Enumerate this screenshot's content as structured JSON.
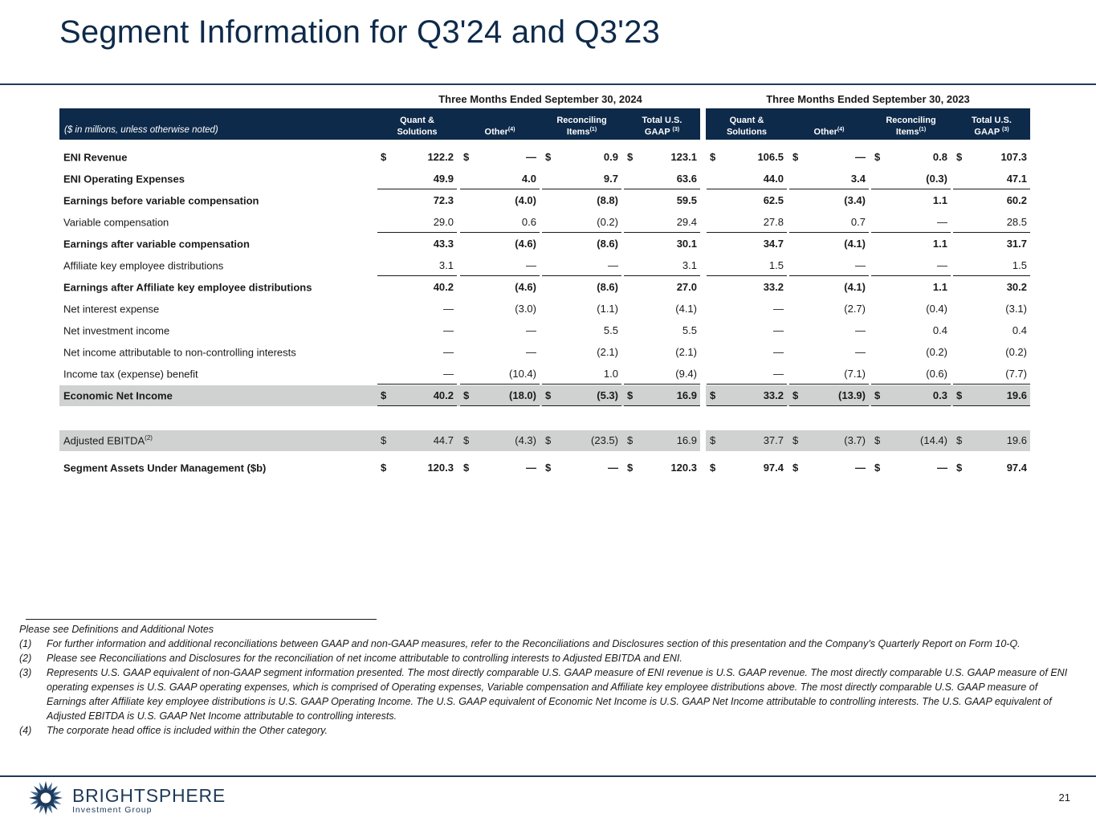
{
  "title": "Segment Information for Q3'24 and Q3'23",
  "periods": {
    "current": "Three Months Ended September 30, 2024",
    "prior": "Three Months Ended September 30, 2023"
  },
  "units_note": "($ in millions, unless otherwise noted)",
  "column_headers": [
    {
      "l1": "Quant &",
      "l2": "Solutions",
      "sup": ""
    },
    {
      "l1": "",
      "l2": "Other",
      "sup": "(4)"
    },
    {
      "l1": "Reconciling",
      "l2": "Items",
      "sup": "(1)"
    },
    {
      "l1": "Total U.S.",
      "l2": "GAAP ",
      "sup": "(3)"
    },
    {
      "l1": "Quant &",
      "l2": "Solutions",
      "sup": ""
    },
    {
      "l1": "",
      "l2": "Other",
      "sup": "(4)"
    },
    {
      "l1": "Reconciling",
      "l2": "Items",
      "sup": "(1)"
    },
    {
      "l1": "Total U.S.",
      "l2": "GAAP ",
      "sup": "(3)"
    }
  ],
  "rows": [
    {
      "label": "ENI Revenue",
      "sup": "",
      "bold": true,
      "dollar": true,
      "values": [
        "122.2",
        "—",
        "0.9",
        "123.1",
        "106.5",
        "—",
        "0.8",
        "107.3"
      ]
    },
    {
      "label": "ENI Operating Expenses",
      "sup": "",
      "bold": true,
      "dollar": false,
      "values": [
        "49.9",
        "4.0",
        "9.7",
        "63.6",
        "44.0",
        "3.4",
        "(0.3)",
        "47.1"
      ]
    },
    {
      "label": "Earnings before variable compensation",
      "sup": "",
      "bold": true,
      "dollar": false,
      "values": [
        "72.3",
        "(4.0)",
        "(8.8)",
        "59.5",
        "62.5",
        "(3.4)",
        "1.1",
        "60.2"
      ]
    },
    {
      "label": "Variable compensation",
      "sup": "",
      "bold": false,
      "dollar": false,
      "values": [
        "29.0",
        "0.6",
        "(0.2)",
        "29.4",
        "27.8",
        "0.7",
        "—",
        "28.5"
      ]
    },
    {
      "label": "Earnings after variable compensation",
      "sup": "",
      "bold": true,
      "dollar": false,
      "values": [
        "43.3",
        "(4.6)",
        "(8.6)",
        "30.1",
        "34.7",
        "(4.1)",
        "1.1",
        "31.7"
      ]
    },
    {
      "label": "Affiliate key employee distributions",
      "sup": "",
      "bold": false,
      "dollar": false,
      "values": [
        "3.1",
        "—",
        "—",
        "3.1",
        "1.5",
        "—",
        "—",
        "1.5"
      ]
    },
    {
      "label": "Earnings after Affiliate key employee distributions",
      "sup": "",
      "bold": true,
      "dollar": false,
      "values": [
        "40.2",
        "(4.6)",
        "(8.6)",
        "27.0",
        "33.2",
        "(4.1)",
        "1.1",
        "30.2"
      ]
    },
    {
      "label": "Net interest expense",
      "sup": "",
      "bold": false,
      "dollar": false,
      "values": [
        "—",
        "(3.0)",
        "(1.1)",
        "(4.1)",
        "—",
        "(2.7)",
        "(0.4)",
        "(3.1)"
      ]
    },
    {
      "label": "Net investment income",
      "sup": "",
      "bold": false,
      "dollar": false,
      "values": [
        "—",
        "—",
        "5.5",
        "5.5",
        "—",
        "—",
        "0.4",
        "0.4"
      ]
    },
    {
      "label": "Net income attributable to non-controlling interests",
      "sup": "",
      "bold": false,
      "dollar": false,
      "values": [
        "—",
        "—",
        "(2.1)",
        "(2.1)",
        "—",
        "—",
        "(0.2)",
        "(0.2)"
      ]
    },
    {
      "label": "Income tax (expense) benefit",
      "sup": "",
      "bold": false,
      "dollar": false,
      "values": [
        "—",
        "(10.4)",
        "1.0",
        "(9.4)",
        "—",
        "(7.1)",
        "(0.6)",
        "(7.7)"
      ]
    },
    {
      "label": "Economic Net Income",
      "sup": "",
      "bold": true,
      "dollar": true,
      "values": [
        "40.2",
        "(18.0)",
        "(5.3)",
        "16.9",
        "33.2",
        "(13.9)",
        "0.3",
        "19.6"
      ]
    },
    {
      "label": "Adjusted EBITDA",
      "sup": "(2)",
      "bold": false,
      "dollar": true,
      "values": [
        "44.7",
        "(4.3)",
        "(23.5)",
        "16.9",
        "37.7",
        "(3.7)",
        "(14.4)",
        "19.6"
      ]
    },
    {
      "label": "Segment Assets Under Management ($b)",
      "sup": "",
      "bold": true,
      "dollar": true,
      "values": [
        "120.3",
        "—",
        "—",
        "120.3",
        "97.4",
        "—",
        "—",
        "97.4"
      ]
    }
  ],
  "dollar_sign": "$",
  "notes": {
    "intro": "Please see Definitions and Additional Notes",
    "items": [
      {
        "num": "(1)",
        "text": "For further information and additional reconciliations between GAAP and non-GAAP measures, refer to the Reconciliations and Disclosures section of this presentation and the Company’s Quarterly Report on Form 10-Q."
      },
      {
        "num": "(2)",
        "text": "Please see Reconciliations and Disclosures for the reconciliation of net income attributable to controlling interests to Adjusted EBITDA and ENI."
      },
      {
        "num": "(3)",
        "text": "Represents U.S. GAAP equivalent of non-GAAP segment information presented. The most directly comparable U.S. GAAP measure of ENI revenue is U.S. GAAP revenue. The most directly comparable U.S. GAAP measure of ENI operating expenses is U.S. GAAP operating expenses, which is comprised of Operating expenses, Variable compensation and Affiliate key employee distributions above. The most directly comparable U.S. GAAP measure of Earnings after Affiliate key employee distributions is U.S. GAAP Operating Income. The U.S. GAAP equivalent of Economic Net Income is U.S. GAAP Net Income attributable to controlling interests. The U.S. GAAP equivalent of Adjusted EBITDA is U.S. GAAP Net Income attributable to controlling interests."
      },
      {
        "num": "(4)",
        "text": "The corporate head office is included within the Other category."
      }
    ]
  },
  "footer": {
    "brand": "BRIGHTSPHERE",
    "brand_sub": "Investment Group",
    "page_number": "21",
    "brand_color": "#1e3a58"
  }
}
